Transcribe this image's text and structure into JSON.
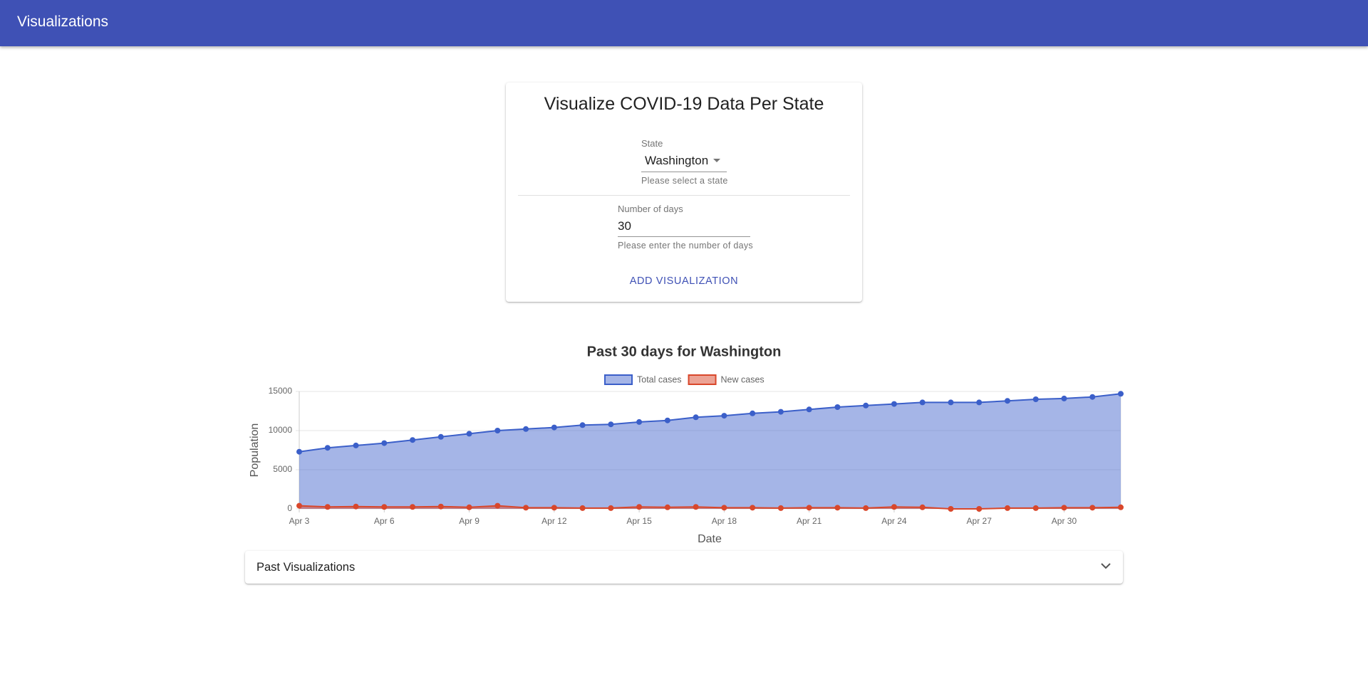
{
  "header": {
    "title": "Visualizations"
  },
  "form": {
    "title": "Visualize COVID-19 Data Per State",
    "state_label": "State",
    "state_value": "Washington",
    "state_helper": "Please select a state",
    "days_label": "Number of days",
    "days_value": "30",
    "days_helper": "Please enter the number of days",
    "button": "ADD VISUALIZATION"
  },
  "chart_data": {
    "type": "line",
    "title": "Past 30 days for Washington",
    "x_label": "Date",
    "y_label": "Population",
    "categories": [
      "Apr 3",
      null,
      null,
      "Apr 6",
      null,
      null,
      "Apr 9",
      null,
      null,
      "Apr 12",
      null,
      null,
      "Apr 15",
      null,
      null,
      "Apr 18",
      null,
      null,
      "Apr 21",
      null,
      null,
      "Apr 24",
      null,
      null,
      "Apr 27",
      null,
      null,
      "Apr 30",
      null,
      null
    ],
    "series": [
      {
        "name": "Total cases",
        "color": "#3b5fc9",
        "fill": "rgba(63,98,204,0.47)",
        "values": [
          7300,
          7800,
          8100,
          8400,
          8800,
          9200,
          9600,
          10000,
          10200,
          10400,
          10700,
          10800,
          11100,
          11300,
          11700,
          11900,
          12200,
          12400,
          12700,
          13000,
          13200,
          13400,
          13600,
          13600,
          13600,
          13800,
          14000,
          14100,
          14300,
          14700
        ]
      },
      {
        "name": "New cases",
        "color": "#d9472b",
        "fill": "rgba(217,71,43,0.5)",
        "values": [
          400,
          250,
          300,
          250,
          250,
          300,
          200,
          400,
          150,
          150,
          100,
          100,
          250,
          200,
          250,
          150,
          150,
          100,
          150,
          150,
          100,
          250,
          200,
          0,
          0,
          100,
          100,
          150,
          150,
          200
        ]
      }
    ],
    "ylim": [
      0,
      15000
    ],
    "yticks": [
      0,
      5000,
      10000,
      15000
    ],
    "grid": true
  },
  "past_visualizations": {
    "title": "Past Visualizations"
  }
}
